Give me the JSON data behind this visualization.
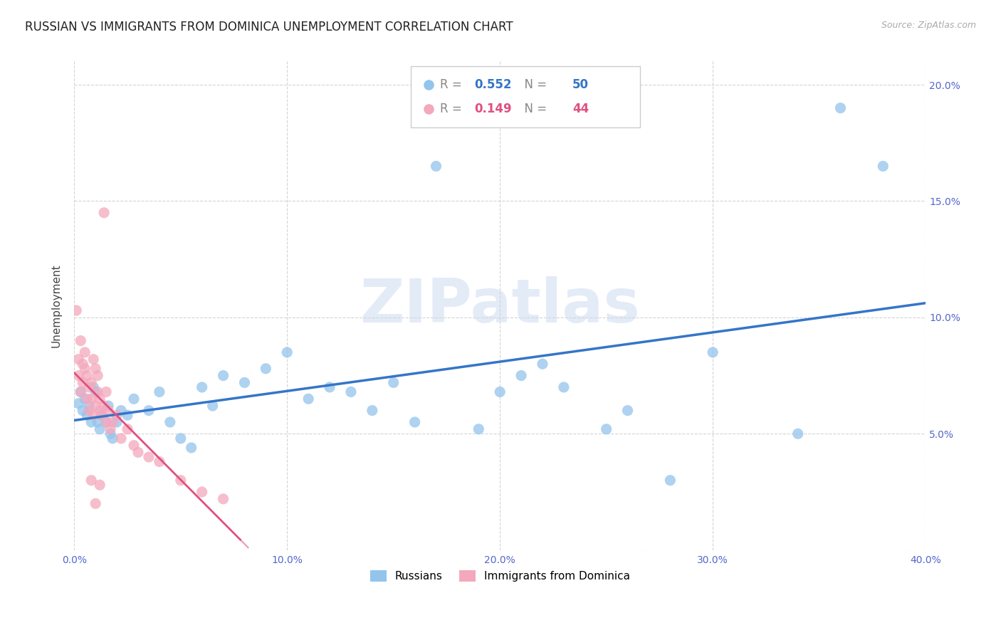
{
  "title": "RUSSIAN VS IMMIGRANTS FROM DOMINICA UNEMPLOYMENT CORRELATION CHART",
  "source": "Source: ZipAtlas.com",
  "ylabel": "Unemployment",
  "xlim": [
    0.0,
    0.4
  ],
  "ylim": [
    0.0,
    0.21
  ],
  "xticks": [
    0.0,
    0.1,
    0.2,
    0.3,
    0.4
  ],
  "xtick_labels": [
    "0.0%",
    "10.0%",
    "20.0%",
    "30.0%",
    "40.0%"
  ],
  "yticks": [
    0.0,
    0.05,
    0.1,
    0.15,
    0.2
  ],
  "ytick_labels": [
    "",
    "5.0%",
    "10.0%",
    "15.0%",
    "20.0%"
  ],
  "grid_color": "#d0d0d0",
  "background_color": "#ffffff",
  "blue_color": "#93C4EC",
  "pink_color": "#F4A8BC",
  "blue_line_color": "#3575C8",
  "pink_line_color": "#E05080",
  "blue_r": "0.552",
  "blue_n": "50",
  "pink_r": "0.149",
  "pink_n": "44",
  "legend_label_blue": "Russians",
  "legend_label_pink": "Immigrants from Dominica",
  "title_fontsize": 12,
  "axis_label_fontsize": 11,
  "tick_fontsize": 10,
  "russians_x": [
    0.002,
    0.003,
    0.004,
    0.005,
    0.006,
    0.007,
    0.008,
    0.009,
    0.01,
    0.011,
    0.012,
    0.013,
    0.015,
    0.016,
    0.017,
    0.018,
    0.02,
    0.022,
    0.025,
    0.028,
    0.035,
    0.04,
    0.045,
    0.05,
    0.055,
    0.06,
    0.065,
    0.07,
    0.08,
    0.09,
    0.1,
    0.11,
    0.12,
    0.13,
    0.14,
    0.15,
    0.16,
    0.17,
    0.19,
    0.2,
    0.21,
    0.22,
    0.23,
    0.25,
    0.26,
    0.28,
    0.3,
    0.34,
    0.36,
    0.38
  ],
  "russians_y": [
    0.063,
    0.068,
    0.06,
    0.065,
    0.058,
    0.062,
    0.055,
    0.07,
    0.068,
    0.055,
    0.052,
    0.058,
    0.055,
    0.062,
    0.05,
    0.048,
    0.055,
    0.06,
    0.058,
    0.065,
    0.06,
    0.068,
    0.055,
    0.048,
    0.044,
    0.07,
    0.062,
    0.075,
    0.072,
    0.078,
    0.085,
    0.065,
    0.07,
    0.068,
    0.06,
    0.072,
    0.055,
    0.165,
    0.052,
    0.068,
    0.075,
    0.08,
    0.07,
    0.052,
    0.06,
    0.03,
    0.085,
    0.05,
    0.19,
    0.165
  ],
  "dominica_x": [
    0.001,
    0.002,
    0.002,
    0.003,
    0.003,
    0.004,
    0.004,
    0.005,
    0.005,
    0.006,
    0.006,
    0.007,
    0.007,
    0.008,
    0.008,
    0.009,
    0.009,
    0.01,
    0.01,
    0.011,
    0.011,
    0.012,
    0.012,
    0.013,
    0.014,
    0.015,
    0.015,
    0.016,
    0.017,
    0.018,
    0.02,
    0.022,
    0.025,
    0.028,
    0.03,
    0.035,
    0.04,
    0.05,
    0.06,
    0.07,
    0.008,
    0.012,
    0.01,
    0.014
  ],
  "dominica_y": [
    0.103,
    0.075,
    0.082,
    0.068,
    0.09,
    0.072,
    0.08,
    0.085,
    0.078,
    0.065,
    0.075,
    0.07,
    0.06,
    0.065,
    0.072,
    0.058,
    0.082,
    0.062,
    0.078,
    0.068,
    0.075,
    0.06,
    0.065,
    0.058,
    0.062,
    0.068,
    0.055,
    0.06,
    0.052,
    0.055,
    0.058,
    0.048,
    0.052,
    0.045,
    0.042,
    0.04,
    0.038,
    0.03,
    0.025,
    0.022,
    0.03,
    0.028,
    0.02,
    0.145
  ]
}
